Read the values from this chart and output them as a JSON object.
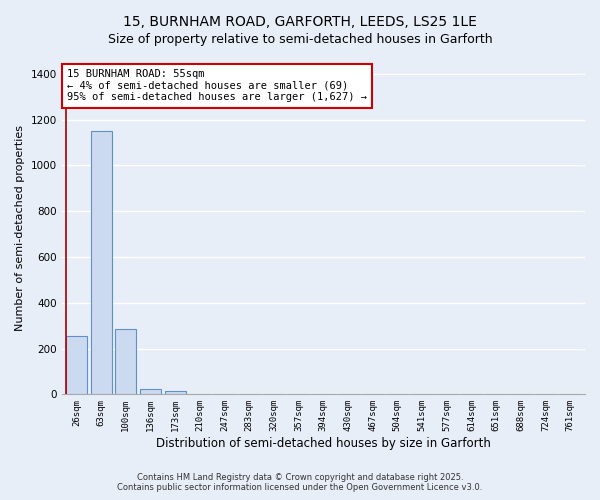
{
  "title1": "15, BURNHAM ROAD, GARFORTH, LEEDS, LS25 1LE",
  "title2": "Size of property relative to semi-detached houses in Garforth",
  "xlabel": "Distribution of semi-detached houses by size in Garforth",
  "ylabel": "Number of semi-detached properties",
  "categories": [
    "26sqm",
    "63sqm",
    "100sqm",
    "136sqm",
    "173sqm",
    "210sqm",
    "247sqm",
    "283sqm",
    "320sqm",
    "357sqm",
    "394sqm",
    "430sqm",
    "467sqm",
    "504sqm",
    "541sqm",
    "577sqm",
    "614sqm",
    "651sqm",
    "688sqm",
    "724sqm",
    "761sqm"
  ],
  "values": [
    255,
    1150,
    285,
    25,
    15,
    0,
    0,
    0,
    0,
    0,
    0,
    0,
    0,
    0,
    0,
    0,
    0,
    0,
    0,
    0,
    0
  ],
  "bar_color": "#ccdaf0",
  "bar_edge_color": "#6090c8",
  "background_color": "#e8eef8",
  "grid_color": "#ffffff",
  "red_line_x": -0.42,
  "annotation_text": "15 BURNHAM ROAD: 55sqm\n← 4% of semi-detached houses are smaller (69)\n95% of semi-detached houses are larger (1,627) →",
  "annotation_box_color": "#ffffff",
  "annotation_box_edge": "#cc0000",
  "ylim": [
    0,
    1450
  ],
  "yticks": [
    0,
    200,
    400,
    600,
    800,
    1000,
    1200,
    1400
  ],
  "footer1": "Contains HM Land Registry data © Crown copyright and database right 2025.",
  "footer2": "Contains public sector information licensed under the Open Government Licence v3.0.",
  "title1_fontsize": 10,
  "title2_fontsize": 9,
  "tick_fontsize": 6.5,
  "ylabel_fontsize": 8,
  "xlabel_fontsize": 8.5,
  "annotation_fontsize": 7.5,
  "footer_fontsize": 6
}
